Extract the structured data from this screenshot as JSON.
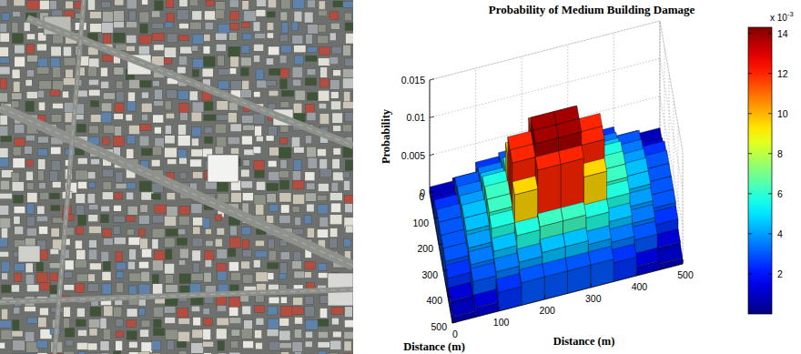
{
  "chart_data": {
    "type": "bar3d",
    "title": "Probability of Medium Building Damage",
    "xlabel": "Distance (m)",
    "ylabel": "Distance (m)",
    "zlabel": "Probability",
    "xlim": [
      0,
      500
    ],
    "xticks": [
      0,
      100,
      200,
      300,
      400,
      500
    ],
    "ylim": [
      0,
      500
    ],
    "yticks": [
      0,
      100,
      200,
      300,
      400,
      500
    ],
    "zlim": [
      0,
      0.015
    ],
    "zticks": [
      0,
      0.005,
      0.01,
      0.015
    ],
    "grid": true,
    "cells": [
      [
        0.0008,
        0.0012,
        0.0025,
        0.003,
        0.003,
        0.003,
        0.003,
        0.0025,
        0.0012,
        0.0008
      ],
      [
        0.0012,
        0.003,
        0.0035,
        0.004,
        0.0045,
        0.0045,
        0.004,
        0.0035,
        0.003,
        0.0012
      ],
      [
        0.0025,
        0.0035,
        0.0045,
        0.0058,
        0.0062,
        0.0062,
        0.0058,
        0.0045,
        0.0035,
        0.0025
      ],
      [
        0.003,
        0.004,
        0.0058,
        0.0095,
        0.012,
        0.012,
        0.0095,
        0.0058,
        0.004,
        0.003
      ],
      [
        0.003,
        0.0045,
        0.0062,
        0.012,
        0.0138,
        0.0138,
        0.012,
        0.0062,
        0.0045,
        0.003
      ],
      [
        0.003,
        0.0045,
        0.0062,
        0.012,
        0.0138,
        0.0138,
        0.012,
        0.0062,
        0.0045,
        0.003
      ],
      [
        0.003,
        0.004,
        0.0058,
        0.0095,
        0.012,
        0.012,
        0.0095,
        0.0058,
        0.004,
        0.003
      ],
      [
        0.0025,
        0.0035,
        0.0045,
        0.0058,
        0.0062,
        0.0062,
        0.0058,
        0.0045,
        0.0035,
        0.0025
      ],
      [
        0.0012,
        0.003,
        0.0035,
        0.004,
        0.0045,
        0.0045,
        0.004,
        0.0035,
        0.003,
        0.0012
      ],
      [
        0.0008,
        0.0012,
        0.0025,
        0.003,
        0.003,
        0.003,
        0.003,
        0.0025,
        0.0012,
        0.0008
      ]
    ],
    "clim": [
      0,
      0.0143
    ],
    "cticks": [
      {
        "value": 0.002,
        "label": "2"
      },
      {
        "value": 0.004,
        "label": "4"
      },
      {
        "value": 0.006,
        "label": "6"
      },
      {
        "value": 0.008,
        "label": "8"
      },
      {
        "value": 0.01,
        "label": "10"
      },
      {
        "value": 0.012,
        "label": "12"
      },
      {
        "value": 0.014,
        "label": "14"
      }
    ],
    "colorbar_unit_base": "x 10",
    "colorbar_unit_exponent": "-3"
  }
}
